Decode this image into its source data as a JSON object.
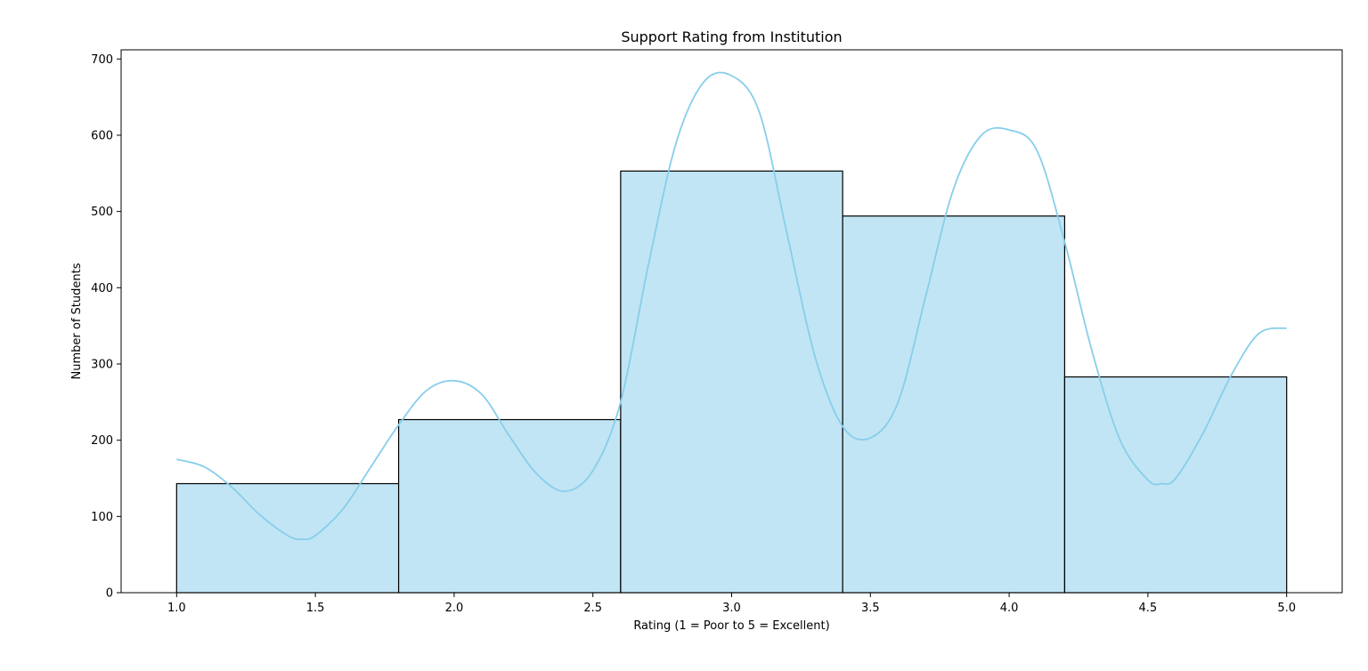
{
  "chart_data": {
    "type": "bar",
    "title": "Support Rating from Institution",
    "xlabel": "Rating (1 = Poor to 5 = Excellent)",
    "ylabel": "Number of Students",
    "xlim": [
      0.8,
      5.2
    ],
    "ylim": [
      0,
      712
    ],
    "x_ticks": [
      1.0,
      1.5,
      2.0,
      2.5,
      3.0,
      3.5,
      4.0,
      4.5,
      5.0
    ],
    "x_tick_labels": [
      "1.0",
      "1.5",
      "2.0",
      "2.5",
      "3.0",
      "3.5",
      "4.0",
      "4.5",
      "5.0"
    ],
    "y_ticks": [
      0,
      100,
      200,
      300,
      400,
      500,
      600,
      700
    ],
    "y_tick_labels": [
      "0",
      "100",
      "200",
      "300",
      "400",
      "500",
      "600",
      "700"
    ],
    "bins": [
      {
        "start": 1.0,
        "end": 1.8,
        "count": 143
      },
      {
        "start": 1.8,
        "end": 2.6,
        "count": 227
      },
      {
        "start": 2.6,
        "end": 3.4,
        "count": 553
      },
      {
        "start": 3.4,
        "end": 4.2,
        "count": 494
      },
      {
        "start": 4.2,
        "end": 5.0,
        "count": 283
      }
    ],
    "kde": {
      "x": [
        1.0,
        1.1,
        1.2,
        1.3,
        1.4,
        1.45,
        1.5,
        1.6,
        1.7,
        1.8,
        1.9,
        2.0,
        2.1,
        2.2,
        2.3,
        2.4,
        2.5,
        2.6,
        2.7,
        2.8,
        2.9,
        3.0,
        3.1,
        3.2,
        3.3,
        3.4,
        3.5,
        3.6,
        3.7,
        3.8,
        3.9,
        4.0,
        4.1,
        4.2,
        4.3,
        4.4,
        4.5,
        4.55,
        4.6,
        4.7,
        4.8,
        4.9,
        5.0
      ],
      "y": [
        175,
        165,
        138,
        102,
        75,
        70,
        75,
        110,
        165,
        220,
        265,
        278,
        260,
        205,
        155,
        133,
        160,
        250,
        430,
        590,
        670,
        678,
        630,
        470,
        310,
        218,
        203,
        250,
        390,
        530,
        600,
        607,
        580,
        460,
        315,
        200,
        148,
        143,
        150,
        210,
        285,
        340,
        347
      ]
    },
    "bar_color": "#c1e5f4",
    "bar_edge_color": "#000000",
    "kde_color": "#87ceeb",
    "grid": false,
    "legend": "none"
  }
}
